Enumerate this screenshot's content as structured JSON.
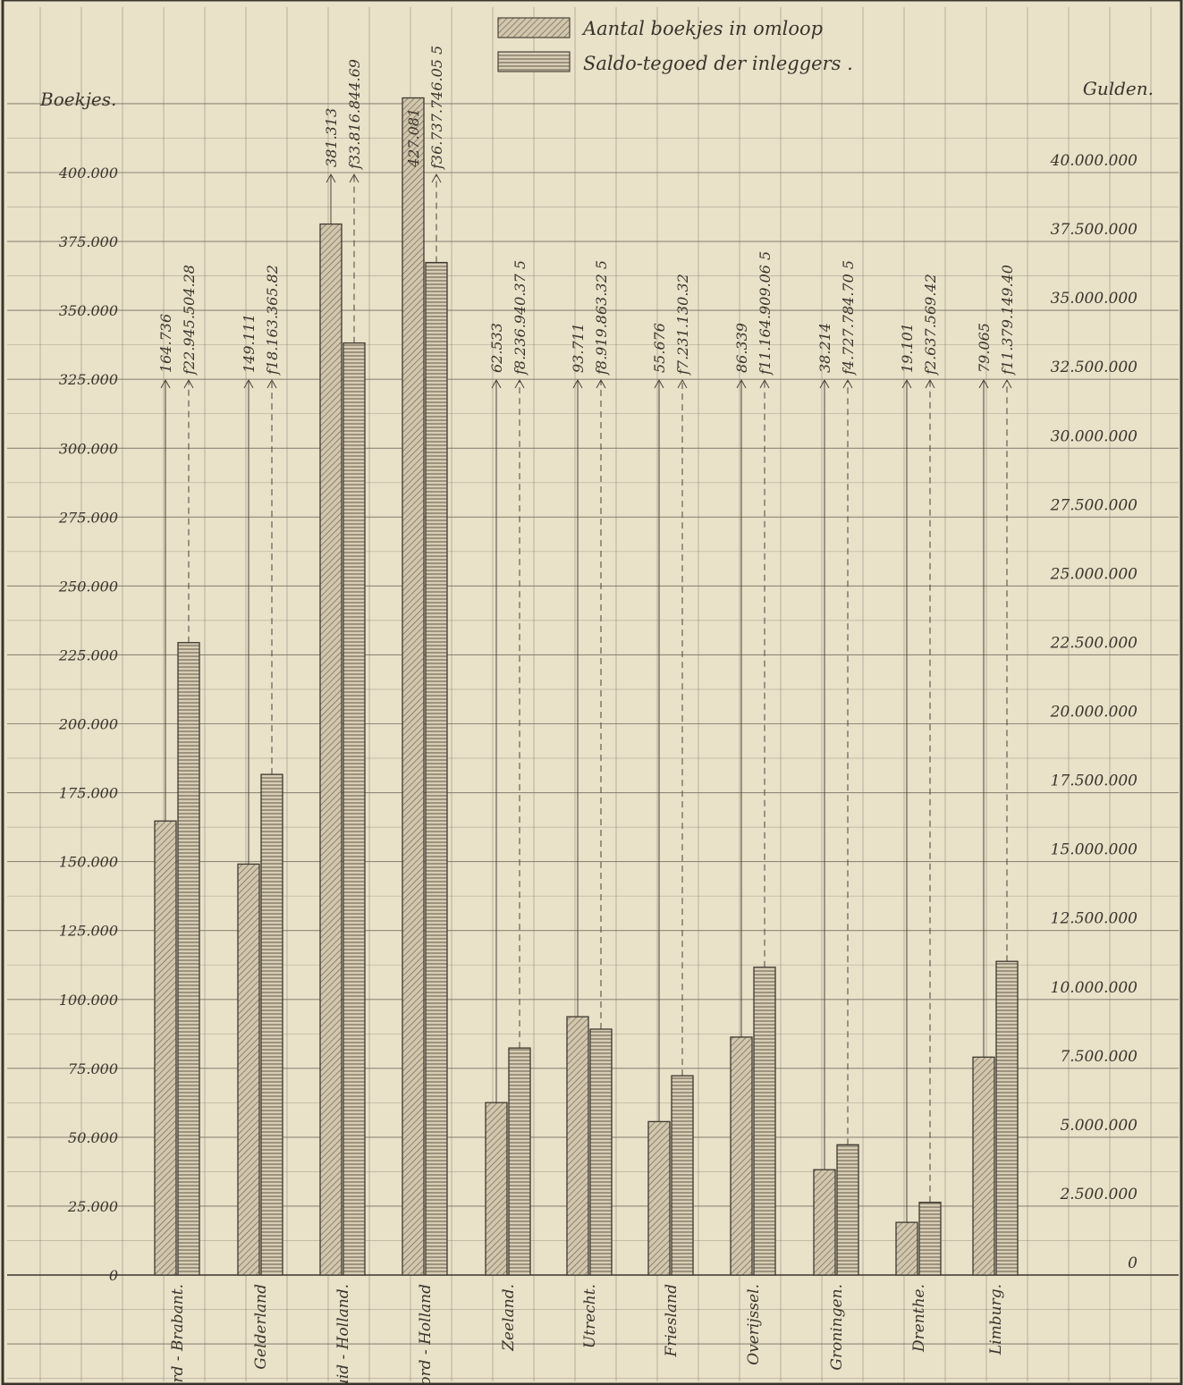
{
  "chart_data": {
    "type": "bar",
    "legend": {
      "placement": "top-center",
      "entries": [
        "Aantal boekjes in omloop",
        "Saldo-tegoed der inleggers ."
      ]
    },
    "axes": {
      "left": {
        "title": "Boekjes.",
        "min": 0,
        "max": 425000,
        "ticks": [
          {
            "value": 0,
            "label": "0"
          },
          {
            "value": 25000,
            "label": "25.000"
          },
          {
            "value": 50000,
            "label": "50.000"
          },
          {
            "value": 75000,
            "label": "75.000"
          },
          {
            "value": 100000,
            "label": "100.000"
          },
          {
            "value": 125000,
            "label": "125.000"
          },
          {
            "value": 150000,
            "label": "150.000"
          },
          {
            "value": 175000,
            "label": "175.000"
          },
          {
            "value": 200000,
            "label": "200.000"
          },
          {
            "value": 225000,
            "label": "225.000"
          },
          {
            "value": 250000,
            "label": "250.000"
          },
          {
            "value": 275000,
            "label": "275.000"
          },
          {
            "value": 300000,
            "label": "300.000"
          },
          {
            "value": 325000,
            "label": "325.000"
          },
          {
            "value": 350000,
            "label": "350.000"
          },
          {
            "value": 375000,
            "label": "375.000"
          },
          {
            "value": 400000,
            "label": "400.000"
          }
        ]
      },
      "right": {
        "title": "Gulden.",
        "min": 0,
        "max": 42500000,
        "ticks": [
          {
            "value": 0,
            "label": "0"
          },
          {
            "value": 2500000,
            "label": "2.500.000"
          },
          {
            "value": 5000000,
            "label": "5.000.000"
          },
          {
            "value": 7500000,
            "label": "7.500.000"
          },
          {
            "value": 10000000,
            "label": "10.000.000"
          },
          {
            "value": 12500000,
            "label": "12.500.000"
          },
          {
            "value": 15000000,
            "label": "15.000.000"
          },
          {
            "value": 17500000,
            "label": "17.500.000"
          },
          {
            "value": 20000000,
            "label": "20.000.000"
          },
          {
            "value": 22500000,
            "label": "22.500.000"
          },
          {
            "value": 25000000,
            "label": "25.000.000"
          },
          {
            "value": 27500000,
            "label": "27.500.000"
          },
          {
            "value": 30000000,
            "label": "30.000.000"
          },
          {
            "value": 32500000,
            "label": "32.500.000"
          },
          {
            "value": 35000000,
            "label": "35.000.000"
          },
          {
            "value": 37500000,
            "label": "37.500.000"
          },
          {
            "value": 40000000,
            "label": "40.000.000"
          }
        ]
      }
    },
    "categories": [
      {
        "label": "Noord - Brabant.",
        "boekjes": 164736,
        "boekjes_label": "164.736",
        "saldo": 22945504.28,
        "saldo_label": "f22.945.504.28"
      },
      {
        "label": "Gelderland",
        "boekjes": 149111,
        "boekjes_label": "149.111",
        "saldo": 18163365.82,
        "saldo_label": "f18.163.365.82"
      },
      {
        "label": "Zuid - Holland.",
        "boekjes": 381313,
        "boekjes_label": "381.313",
        "saldo": 33816844.69,
        "saldo_label": "f33.816.844.69"
      },
      {
        "label": "Noord - Holland",
        "boekjes": 427081,
        "boekjes_label": "427.081",
        "saldo": 36737746.05,
        "saldo_label": "f36.737.746.05 5"
      },
      {
        "label": "Zeeland.",
        "boekjes": 62533,
        "boekjes_label": "62.533",
        "saldo": 8236940.37,
        "saldo_label": "f8.236.940.37 5"
      },
      {
        "label": "Utrecht.",
        "boekjes": 93711,
        "boekjes_label": "93.711",
        "saldo": 8919863.32,
        "saldo_label": "f8.919.863.32 5"
      },
      {
        "label": "Friesland",
        "boekjes": 55676,
        "boekjes_label": "55.676",
        "saldo": 7231130.32,
        "saldo_label": "f7.231.130.32"
      },
      {
        "label": "Overijssel.",
        "boekjes": 86339,
        "boekjes_label": "86.339",
        "saldo": 11164909.06,
        "saldo_label": "f11.164.909.06 5"
      },
      {
        "label": "Groningen.",
        "boekjes": 38214,
        "boekjes_label": "38.214",
        "saldo": 4727784.7,
        "saldo_label": "f4.727.784.70 5"
      },
      {
        "label": "Drenthe.",
        "boekjes": 19101,
        "boekjes_label": "19.101",
        "saldo": 2637569.42,
        "saldo_label": "f2.637.569.42"
      },
      {
        "label": "Limburg.",
        "boekjes": 79065,
        "boekjes_label": "79.065",
        "saldo": 11379149.4,
        "saldo_label": "f11.379.149.40"
      }
    ]
  }
}
